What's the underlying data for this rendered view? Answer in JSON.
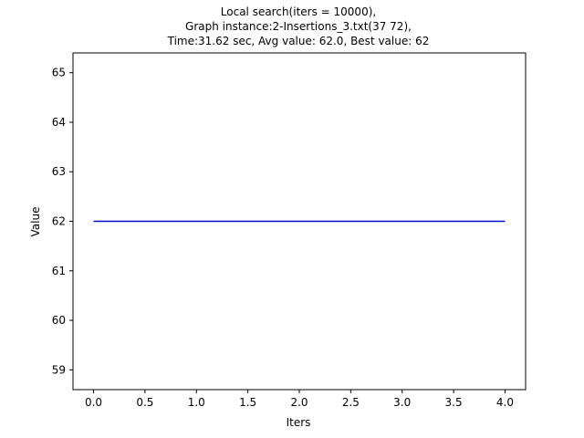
{
  "chart_data": {
    "type": "line",
    "title_lines": [
      "Local search(iters = 10000),",
      "Graph instance:2-Insertions_3.txt(37 72),",
      "Time:31.62 sec, Avg value: 62.0, Best value: 62"
    ],
    "xlabel": "Iters",
    "ylabel": "Value",
    "xlim": [
      -0.2,
      4.2
    ],
    "ylim": [
      58.6,
      65.4
    ],
    "xticks": [
      0.0,
      0.5,
      1.0,
      1.5,
      2.0,
      2.5,
      3.0,
      3.5,
      4.0
    ],
    "xtick_labels": [
      "0.0",
      "0.5",
      "1.0",
      "1.5",
      "2.0",
      "2.5",
      "3.0",
      "3.5",
      "4.0"
    ],
    "yticks": [
      59,
      60,
      61,
      62,
      63,
      64,
      65
    ],
    "ytick_labels": [
      "59",
      "60",
      "61",
      "62",
      "63",
      "64",
      "65"
    ],
    "grid": false,
    "series": [
      {
        "color": "#0000cc",
        "x": [
          0,
          1,
          2,
          3,
          4
        ],
        "y": [
          62,
          62,
          62,
          62,
          62
        ]
      }
    ]
  }
}
